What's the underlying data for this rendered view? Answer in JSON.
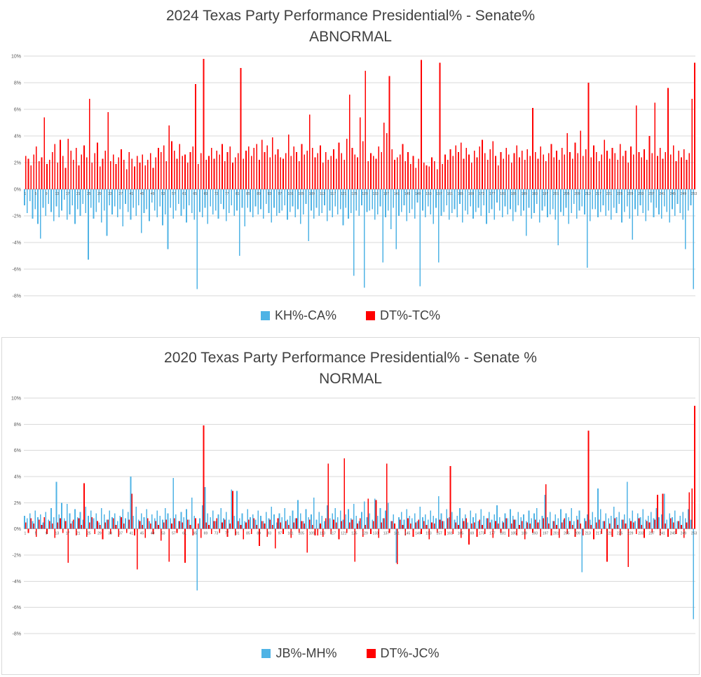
{
  "chart_data": [
    {
      "type": "bar",
      "title": "2024 Texas Party Performance Presidential% - Senate%",
      "subtitle": "ABNORMAL",
      "xlabel": "",
      "ylabel": "",
      "ylim": [
        -8,
        10
      ],
      "y_tick_step": 2,
      "y_unit": "%",
      "x_start": 1,
      "x_end": 253,
      "x_tick_step": 4,
      "grid": true,
      "legend_position": "bottom",
      "grid_color": "#D9D9D9",
      "axis_color": "#BFBFBF",
      "tick_color": "#595959",
      "series": [
        {
          "name": "KH%-CA%",
          "color": "#4FB3E5",
          "values": [
            -1.2,
            -1.8,
            -0.9,
            -2.2,
            -1.5,
            -2.6,
            -3.7,
            -1.4,
            -2.0,
            -1.1,
            -1.7,
            -2.4,
            -1.3,
            -2.1,
            -1.6,
            -0.8,
            -2.3,
            -1.9,
            -1.2,
            -2.6,
            -1.5,
            -2.0,
            -1.1,
            -1.8,
            -5.3,
            -1.4,
            -2.2,
            -1.7,
            -1.0,
            -2.5,
            -1.6,
            -3.5,
            -1.2,
            -1.9,
            -1.3,
            -2.1,
            -1.5,
            -2.8,
            -1.1,
            -1.7,
            -2.3,
            -1.4,
            -2.0,
            -1.2,
            -3.3,
            -1.8,
            -1.5,
            -2.4,
            -1.0,
            -1.6,
            -2.1,
            -1.3,
            -2.7,
            -1.9,
            -4.5,
            -1.4,
            -2.2,
            -1.6,
            -1.1,
            -2.0,
            -1.5,
            -2.5,
            -1.2,
            -1.8,
            -2.3,
            -7.5,
            -1.7,
            -2.1,
            -1.4,
            -2.6,
            -1.3,
            -1.9,
            -1.6,
            -2.2,
            -1.1,
            -1.5,
            -2.4,
            -1.8,
            -1.2,
            -2.0,
            -1.6,
            -5.0,
            -1.4,
            -2.8,
            -1.4,
            -1.7,
            -2.1,
            -1.3,
            -1.9,
            -1.5,
            -2.2,
            -1.1,
            -1.8,
            -2.5,
            -1.4,
            -2.0,
            -1.8,
            -1.6,
            -1.2,
            -2.3,
            -1.7,
            -1.3,
            -2.1,
            -1.5,
            -2.6,
            -1.9,
            -1.1,
            -3.9,
            -1.6,
            -2.2,
            -1.4,
            -2.0,
            -1.8,
            -1.2,
            -2.4,
            -1.6,
            -2.1,
            -1.3,
            -1.9,
            -1.5,
            -2.7,
            -1.4,
            -2.2,
            -1.8,
            -6.5,
            -1.6,
            -2.0,
            -1.2,
            -7.4,
            -1.7,
            -1.6,
            -1.5,
            -2.3,
            -1.9,
            -1.3,
            -5.5,
            -2.1,
            -1.6,
            -3.0,
            -1.4,
            -4.5,
            -2.0,
            -1.7,
            -1.2,
            -2.4,
            -1.8,
            -1.5,
            -2.2,
            -1.0,
            -7.3,
            -1.6,
            -2.1,
            -1.3,
            -1.9,
            -2.6,
            -1.4,
            -5.5,
            -2.0,
            -1.7,
            -1.2,
            -2.3,
            -1.8,
            -1.5,
            -2.1,
            -1.1,
            -2.5,
            -1.6,
            -1.9,
            -1.3,
            -2.2,
            -1.7,
            -1.4,
            -2.0,
            -1.2,
            -2.6,
            -1.8,
            -1.5,
            -2.3,
            -1.0,
            -1.6,
            -2.1,
            -1.3,
            -1.9,
            -1.5,
            -2.4,
            -1.7,
            -1.2,
            -2.0,
            -1.6,
            -3.5,
            -1.4,
            -2.2,
            -1.8,
            -1.1,
            -2.5,
            -1.6,
            -1.3,
            -2.1,
            -1.9,
            -1.5,
            -2.3,
            -4.2,
            -1.7,
            -2.0,
            -1.4,
            -2.6,
            -1.8,
            -1.1,
            -2.2,
            -1.6,
            -1.3,
            -1.9,
            -5.9,
            -2.4,
            -1.5,
            -1.5,
            -2.1,
            -1.7,
            -1.2,
            -2.0,
            -1.6,
            -2.3,
            -1.4,
            -1.8,
            -1.1,
            -2.5,
            -1.7,
            -1.3,
            -2.2,
            -3.8,
            -1.5,
            -2.0,
            -1.2,
            -1.8,
            -2.4,
            -1.6,
            -1.0,
            -2.1,
            -1.4,
            -1.9,
            -2.2,
            -1.3,
            -1.7,
            -2.5,
            -1.5,
            -2.0,
            -1.1,
            -1.8,
            -2.3,
            -4.5,
            -1.6,
            -1.2,
            -7.5
          ]
        },
        {
          "name": "DT%-TC%",
          "color": "#FF0000",
          "values": [
            2.5,
            2.3,
            1.8,
            2.6,
            3.2,
            2.1,
            2.4,
            5.4,
            1.9,
            2.2,
            2.8,
            3.4,
            2.0,
            3.7,
            2.5,
            1.6,
            3.8,
            2.9,
            2.2,
            3.1,
            1.8,
            2.6,
            3.3,
            2.4,
            6.8,
            2.0,
            2.7,
            3.5,
            1.7,
            2.3,
            2.9,
            5.8,
            2.1,
            2.6,
            1.9,
            2.4,
            3.0,
            2.2,
            1.5,
            2.8,
            2.3,
            1.7,
            2.5,
            2.0,
            2.6,
            1.8,
            2.2,
            2.7,
            1.6,
            2.4,
            3.1,
            2.8,
            3.3,
            2.1,
            4.8,
            3.6,
            2.9,
            2.3,
            3.4,
            2.5,
            2.6,
            2.0,
            2.8,
            3.2,
            7.9,
            1.9,
            2.7,
            9.8,
            2.2,
            2.5,
            3.1,
            2.3,
            2.9,
            2.6,
            3.4,
            2.1,
            2.8,
            3.2,
            2.0,
            2.4,
            2.7,
            9.1,
            2.3,
            2.9,
            3.2,
            2.5,
            3.1,
            3.4,
            2.2,
            3.7,
            2.8,
            3.3,
            2.4,
            3.9,
            2.6,
            3.0,
            2.4,
            2.3,
            2.7,
            4.1,
            2.5,
            3.2,
            2.8,
            2.1,
            3.4,
            2.6,
            2.9,
            5.6,
            3.1,
            2.4,
            2.7,
            3.3,
            2.0,
            2.8,
            2.2,
            2.5,
            3.0,
            2.3,
            3.5,
            2.7,
            2.2,
            3.8,
            7.1,
            3.1,
            2.6,
            2.4,
            5.4,
            3.6,
            8.9,
            2.1,
            2.7,
            2.5,
            2.3,
            3.2,
            2.8,
            5.0,
            4.2,
            8.5,
            3.0,
            2.2,
            2.4,
            2.6,
            3.4,
            2.1,
            2.8,
            1.9,
            2.5,
            1.6,
            2.3,
            9.7,
            2.0,
            1.8,
            1.7,
            2.4,
            2.1,
            1.5,
            9.5,
            1.9,
            2.6,
            2.2,
            3.0,
            2.5,
            3.3,
            2.8,
            3.5,
            2.3,
            3.1,
            2.6,
            2.0,
            2.9,
            2.4,
            3.2,
            3.7,
            2.7,
            2.2,
            3.0,
            3.6,
            2.5,
            1.8,
            2.8,
            2.3,
            3.1,
            2.6,
            2.0,
            2.7,
            3.3,
            2.4,
            2.9,
            2.2,
            3.0,
            2.5,
            6.1,
            2.8,
            2.3,
            3.2,
            2.6,
            2.1,
            2.7,
            3.4,
            2.4,
            2.9,
            2.2,
            3.1,
            2.6,
            4.2,
            2.8,
            2.3,
            3.5,
            2.7,
            4.4,
            2.5,
            3.0,
            8.0,
            2.4,
            3.3,
            2.8,
            2.1,
            2.6,
            3.7,
            2.9,
            2.3,
            3.1,
            2.7,
            2.2,
            3.4,
            2.5,
            2.9,
            2.0,
            3.2,
            2.6,
            6.3,
            2.8,
            2.4,
            3.0,
            2.2,
            4.0,
            2.7,
            6.5,
            2.5,
            3.1,
            2.3,
            2.8,
            7.6,
            2.6,
            3.3,
            2.1,
            2.9,
            2.4,
            3.0,
            2.2,
            2.7,
            6.8,
            9.5
          ]
        }
      ]
    },
    {
      "type": "bar",
      "title": "2020 Texas Party Performance Presidential% - Senate %",
      "subtitle": "NORMAL",
      "xlabel": "",
      "ylabel": "",
      "ylim": [
        -8,
        10
      ],
      "y_tick_step": 2,
      "y_unit": "%",
      "x_start": 1,
      "x_end": 253,
      "x_tick_step": 4,
      "grid": true,
      "legend_position": "bottom",
      "grid_color": "#D9D9D9",
      "axis_color": "#BFBFBF",
      "tick_color": "#595959",
      "series": [
        {
          "name": "JB%-MH%",
          "color": "#4FB3E5",
          "values": [
            1.0,
            0.8,
            1.2,
            0.6,
            1.4,
            0.9,
            1.1,
            0.5,
            1.3,
            0.7,
            1.6,
            0.9,
            3.6,
            1.1,
            2.0,
            0.8,
            1.9,
            1.2,
            0.6,
            1.5,
            0.9,
            1.3,
            0.7,
            1.7,
            1.0,
            1.4,
            0.8,
            1.2,
            0.5,
            1.6,
            1.1,
            0.7,
            1.4,
            0.9,
            1.2,
            0.6,
            1.0,
            1.5,
            0.8,
            1.3,
            4.0,
            1.0,
            1.7,
            0.7,
            1.2,
            0.9,
            1.5,
            0.6,
            1.1,
            0.8,
            1.4,
            1.0,
            0.7,
            1.6,
            1.2,
            0.8,
            3.9,
            1.1,
            0.6,
            1.3,
            0.9,
            1.5,
            0.7,
            2.4,
            1.0,
            -4.7,
            0.8,
            1.8,
            3.2,
            1.2,
            0.9,
            1.4,
            0.6,
            1.1,
            1.6,
            0.8,
            1.3,
            0.7,
            3.0,
            1.0,
            2.9,
            0.8,
            1.2,
            0.6,
            1.5,
            0.9,
            1.1,
            0.7,
            1.4,
            1.0,
            0.6,
            1.3,
            0.8,
            1.7,
            1.1,
            0.5,
            1.2,
            0.9,
            1.6,
            0.7,
            1.0,
            1.4,
            0.8,
            2.2,
            1.2,
            0.6,
            1.5,
            0.9,
            1.1,
            2.4,
            0.7,
            1.3,
            1.0,
            0.6,
            1.8,
            0.8,
            1.2,
            1.6,
            0.9,
            1.4,
            0.7,
            1.1,
            1.5,
            0.8,
            1.9,
            1.0,
            0.6,
            1.3,
            2.1,
            0.9,
            1.2,
            0.7,
            2.3,
            1.0,
            1.6,
            0.8,
            1.4,
            2.0,
            0.6,
            1.1,
            -2.6,
            0.9,
            1.3,
            0.7,
            1.5,
            1.0,
            0.8,
            1.2,
            0.6,
            1.7,
            0.9,
            1.1,
            0.7,
            1.4,
            1.0,
            0.8,
            2.5,
            1.2,
            0.6,
            1.5,
            0.9,
            1.3,
            0.7,
            1.0,
            1.6,
            0.8,
            1.1,
            0.5,
            1.4,
            0.9,
            1.2,
            0.6,
            1.5,
            1.0,
            0.8,
            1.3,
            0.7,
            1.1,
            1.8,
            0.9,
            0.6,
            1.2,
            0.8,
            1.5,
            1.0,
            0.7,
            1.3,
            0.9,
            1.1,
            0.6,
            1.4,
            0.8,
            1.2,
            1.6,
            0.7,
            1.0,
            2.6,
            0.9,
            1.3,
            0.6,
            1.1,
            0.8,
            1.5,
            0.7,
            1.2,
            0.9,
            1.6,
            0.6,
            1.0,
            1.4,
            -3.3,
            0.8,
            1.1,
            0.7,
            1.3,
            0.9,
            3.1,
            1.5,
            0.6,
            1.2,
            0.8,
            1.0,
            1.7,
            0.9,
            1.3,
            0.7,
            1.1,
            3.6,
            0.8,
            1.4,
            0.6,
            1.2,
            0.9,
            1.5,
            0.7,
            1.0,
            1.3,
            0.8,
            1.6,
            0.9,
            1.1,
            2.7,
            0.7,
            1.2,
            0.9,
            1.4,
            0.6,
            1.0,
            1.3,
            0.8,
            1.5,
            0.7,
            -6.9
          ]
        },
        {
          "name": "DT%-JC%",
          "color": "#FF0000",
          "values": [
            0.5,
            -0.3,
            0.8,
            0.4,
            -0.6,
            0.7,
            0.3,
            0.9,
            -0.4,
            0.6,
            0.4,
            -0.7,
            0.5,
            0.8,
            -0.3,
            0.6,
            -2.6,
            0.4,
            0.7,
            -0.5,
            0.8,
            0.3,
            3.5,
            -0.6,
            0.5,
            0.9,
            -0.4,
            0.6,
            0.3,
            -0.8,
            0.5,
            0.7,
            -0.4,
            0.8,
            0.3,
            -0.6,
            0.9,
            0.4,
            -0.3,
            0.7,
            2.7,
            -0.5,
            -3.1,
            0.6,
            0.3,
            -0.7,
            0.8,
            0.4,
            -0.4,
            0.6,
            0.3,
            -0.9,
            0.5,
            0.7,
            -2.5,
            0.4,
            0.8,
            -0.3,
            0.6,
            0.5,
            -2.6,
            0.7,
            0.3,
            -0.5,
            0.8,
            0.4,
            -0.7,
            7.9,
            0.5,
            0.3,
            -0.4,
            0.6,
            0.8,
            -0.3,
            0.5,
            0.7,
            -0.6,
            0.4,
            2.9,
            -0.5,
            0.6,
            0.3,
            -0.8,
            0.5,
            0.7,
            -0.4,
            0.8,
            0.3,
            -1.3,
            0.6,
            0.4,
            -0.6,
            0.7,
            0.3,
            -1.5,
            0.8,
            0.5,
            -0.4,
            0.6,
            0.3,
            -0.7,
            0.5,
            0.8,
            -0.3,
            0.6,
            0.4,
            -1.8,
            0.7,
            0.3,
            -0.5,
            -0.5,
            0.4,
            -0.6,
            0.8,
            5.0,
            -0.4,
            0.7,
            0.5,
            -0.8,
            0.6,
            5.4,
            -0.3,
            0.5,
            0.7,
            -2.5,
            0.4,
            0.8,
            -0.6,
            0.3,
            2.3,
            -0.4,
            0.6,
            2.2,
            -0.7,
            0.5,
            0.8,
            5.0,
            -0.3,
            0.6,
            0.4,
            -2.7,
            0.7,
            0.3,
            -0.5,
            0.8,
            0.4,
            -0.6,
            0.5,
            0.7,
            -0.4,
            0.6,
            0.3,
            -0.8,
            0.5,
            0.4,
            -0.3,
            0.7,
            0.6,
            -0.5,
            0.8,
            4.8,
            -0.4,
            0.5,
            0.3,
            -0.7,
            0.6,
            0.8,
            -1.2,
            0.4,
            0.5,
            -0.6,
            0.7,
            0.3,
            -0.4,
            0.8,
            0.5,
            -0.7,
            0.6,
            0.4,
            -0.3,
            0.5,
            0.8,
            -0.6,
            0.4,
            0.7,
            -0.5,
            0.3,
            0.6,
            -0.8,
            0.5,
            0.4,
            -0.3,
            0.7,
            0.5,
            -0.6,
            0.8,
            3.4,
            0.4,
            -0.5,
            0.6,
            0.3,
            -0.7,
            0.5,
            0.8,
            -0.4,
            0.6,
            0.3,
            -0.6,
            0.7,
            0.4,
            -0.5,
            0.6,
            7.5,
            0.3,
            -0.8,
            0.5,
            0.7,
            -0.4,
            0.6,
            -2.5,
            0.4,
            -0.6,
            0.8,
            0.3,
            -0.5,
            0.7,
            0.4,
            -2.9,
            0.6,
            0.5,
            -0.4,
            0.8,
            0.3,
            -0.7,
            0.6,
            0.5,
            -0.3,
            0.7,
            2.6,
            -0.5,
            2.7,
            0.4,
            -0.6,
            0.8,
            0.5,
            -0.4,
            0.6,
            0.3,
            -0.7,
            0.5,
            2.8,
            3.1,
            9.4
          ]
        }
      ]
    }
  ]
}
